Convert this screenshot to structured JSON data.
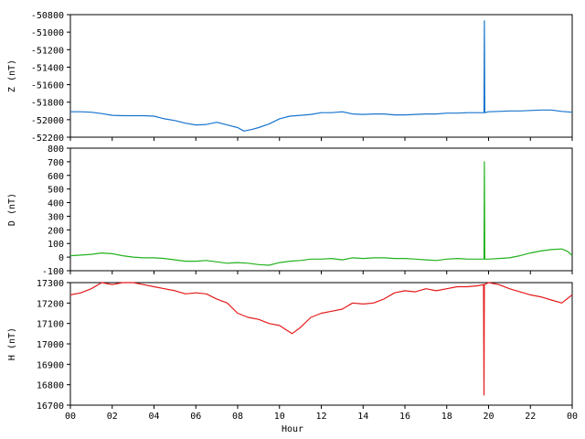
{
  "chart_data": {
    "type": "line",
    "xlabel": "Hour",
    "x_range": [
      0,
      24
    ],
    "x_ticks": [
      "00",
      "02",
      "04",
      "06",
      "08",
      "10",
      "12",
      "14",
      "16",
      "18",
      "20",
      "22",
      "00"
    ],
    "grid": false,
    "panels": [
      {
        "ylabel": "Z (nT)",
        "color": "#1874cd",
        "ylim": [
          -52200,
          -50800
        ],
        "y_ticks": [
          -50800,
          -51000,
          -51200,
          -51400,
          -51600,
          -51800,
          -52000,
          -52200
        ],
        "series": {
          "x": [
            0,
            0.5,
            1,
            1.5,
            2,
            2.5,
            3,
            3.5,
            4,
            4.5,
            5,
            5.5,
            6,
            6.5,
            7,
            7.5,
            8,
            8.3,
            8.7,
            9,
            9.5,
            10,
            10.5,
            11,
            11.5,
            12,
            12.5,
            13,
            13.5,
            14,
            14.5,
            15,
            15.5,
            16,
            16.5,
            17,
            17.5,
            18,
            18.5,
            19,
            19.5,
            19.78,
            19.8,
            19.82,
            20,
            20.5,
            21,
            21.5,
            22,
            22.5,
            23,
            23.5,
            24
          ],
          "y": [
            -51910,
            -51910,
            -51915,
            -51930,
            -51950,
            -51955,
            -51955,
            -51955,
            -51960,
            -51990,
            -52010,
            -52040,
            -52060,
            -52055,
            -52030,
            -52060,
            -52090,
            -52130,
            -52110,
            -52090,
            -52050,
            -51990,
            -51960,
            -51950,
            -51940,
            -51920,
            -51920,
            -51910,
            -51935,
            -51940,
            -51935,
            -51935,
            -51945,
            -51945,
            -51940,
            -51935,
            -51935,
            -51925,
            -51925,
            -51920,
            -51920,
            -51920,
            -50870,
            -51920,
            -51910,
            -51905,
            -51900,
            -51900,
            -51895,
            -51890,
            -51890,
            -51905,
            -51915
          ]
        }
      },
      {
        "ylabel": "D (nT)",
        "color": "#22b21e",
        "ylim": [
          -100,
          800
        ],
        "y_ticks": [
          800,
          700,
          600,
          500,
          400,
          300,
          200,
          100,
          0,
          -100
        ],
        "series": {
          "x": [
            0,
            0.5,
            1,
            1.5,
            2,
            2.5,
            3,
            3.5,
            4,
            4.5,
            5,
            5.5,
            6,
            6.5,
            7,
            7.5,
            8,
            8.5,
            9,
            9.5,
            10,
            10.5,
            11,
            11.5,
            12,
            12.5,
            13,
            13.5,
            14,
            14.5,
            15,
            15.5,
            16,
            16.5,
            17,
            17.5,
            18,
            18.5,
            19,
            19.5,
            19.78,
            19.8,
            19.82,
            20,
            20.5,
            21,
            21.5,
            22,
            22.5,
            23,
            23.5,
            23.8,
            24
          ],
          "y": [
            10,
            15,
            20,
            30,
            25,
            10,
            0,
            -5,
            -5,
            -10,
            -20,
            -30,
            -30,
            -25,
            -35,
            -45,
            -40,
            -45,
            -55,
            -60,
            -40,
            -30,
            -25,
            -15,
            -15,
            -10,
            -20,
            -5,
            -10,
            -5,
            -5,
            -10,
            -10,
            -15,
            -20,
            -25,
            -15,
            -10,
            -15,
            -15,
            -15,
            700,
            -15,
            -15,
            -10,
            -5,
            10,
            30,
            45,
            55,
            60,
            40,
            10
          ]
        }
      },
      {
        "ylabel": "H (nT)",
        "color": "#e41a1a",
        "ylim": [
          16700,
          17300
        ],
        "y_ticks": [
          17300,
          17200,
          17100,
          17000,
          16900,
          16800,
          16700
        ],
        "series": {
          "x": [
            0,
            0.5,
            1,
            1.5,
            2,
            2.5,
            3,
            3.5,
            4,
            4.5,
            5,
            5.5,
            6,
            6.5,
            7,
            7.5,
            8,
            8.5,
            9,
            9.5,
            10,
            10.3,
            10.6,
            11,
            11.5,
            12,
            12.5,
            13,
            13.5,
            14,
            14.5,
            15,
            15.5,
            16,
            16.5,
            17,
            17.5,
            18,
            18.5,
            19,
            19.5,
            19.76,
            19.78,
            19.8,
            20,
            20.5,
            21,
            21.5,
            22,
            22.5,
            23,
            23.5,
            24
          ],
          "y": [
            17240,
            17250,
            17270,
            17300,
            17290,
            17300,
            17300,
            17290,
            17280,
            17270,
            17260,
            17245,
            17250,
            17245,
            17220,
            17200,
            17150,
            17130,
            17120,
            17100,
            17090,
            17070,
            17050,
            17080,
            17130,
            17150,
            17160,
            17170,
            17200,
            17195,
            17200,
            17220,
            17250,
            17260,
            17255,
            17270,
            17260,
            17270,
            17280,
            17280,
            17285,
            17290,
            16750,
            17290,
            17300,
            17290,
            17270,
            17255,
            17240,
            17230,
            17215,
            17200,
            17240
          ]
        }
      }
    ]
  }
}
